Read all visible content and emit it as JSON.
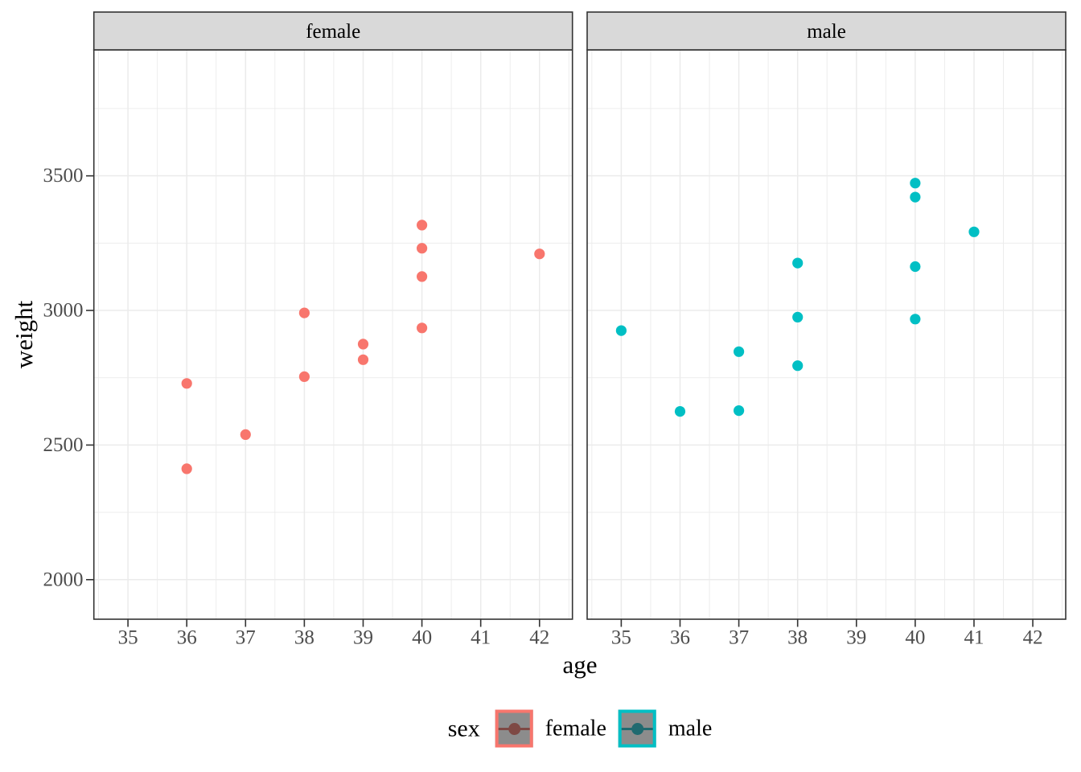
{
  "chart_data": {
    "type": "scatter",
    "title": "",
    "xlabel": "age",
    "ylabel": "weight",
    "facet_variable": "sex",
    "grid": true,
    "legend_position": "bottom",
    "x_ticks": [
      35,
      36,
      37,
      38,
      39,
      40,
      41,
      42
    ],
    "y_ticks": [
      2000,
      2500,
      3000,
      3500
    ],
    "x_minor_step": 0.5,
    "y_minor_step": 250,
    "x_range": [
      34.42,
      42.56
    ],
    "y_range": [
      1853,
      3968
    ],
    "facets": [
      {
        "label": "female",
        "color": "#F8766D",
        "points": [
          {
            "age": 40,
            "weight": 3317
          },
          {
            "age": 36,
            "weight": 2729
          },
          {
            "age": 40,
            "weight": 2935
          },
          {
            "age": 38,
            "weight": 2754
          },
          {
            "age": 42,
            "weight": 3210
          },
          {
            "age": 39,
            "weight": 2817
          },
          {
            "age": 40,
            "weight": 3126
          },
          {
            "age": 37,
            "weight": 2539
          },
          {
            "age": 36,
            "weight": 2412
          },
          {
            "age": 38,
            "weight": 2991
          },
          {
            "age": 39,
            "weight": 2875
          },
          {
            "age": 40,
            "weight": 3231
          }
        ]
      },
      {
        "label": "male",
        "color": "#00BFC4",
        "points": [
          {
            "age": 40,
            "weight": 2968
          },
          {
            "age": 38,
            "weight": 2795
          },
          {
            "age": 40,
            "weight": 3163
          },
          {
            "age": 35,
            "weight": 2925
          },
          {
            "age": 36,
            "weight": 2625
          },
          {
            "age": 37,
            "weight": 2847
          },
          {
            "age": 41,
            "weight": 3292
          },
          {
            "age": 40,
            "weight": 3473
          },
          {
            "age": 37,
            "weight": 2628
          },
          {
            "age": 38,
            "weight": 3176
          },
          {
            "age": 40,
            "weight": 3421
          },
          {
            "age": 38,
            "weight": 2975
          }
        ]
      }
    ]
  },
  "legend": {
    "title": "sex",
    "items": [
      {
        "label": "female",
        "color": "#F8766D",
        "marker_color": "#7E4944"
      },
      {
        "label": "male",
        "color": "#00BFC4",
        "marker_color": "#206A70"
      }
    ]
  },
  "colors": {
    "grid": "#EBEBEB",
    "panel_border": "#333333",
    "strip_fill": "#D9D9D9",
    "strip_text": "#000000",
    "tick_mark": "#333333",
    "tick_label": "#4D4D4D",
    "legend_key_fill": "#8C8C8C",
    "background": "#FFFFFF"
  }
}
